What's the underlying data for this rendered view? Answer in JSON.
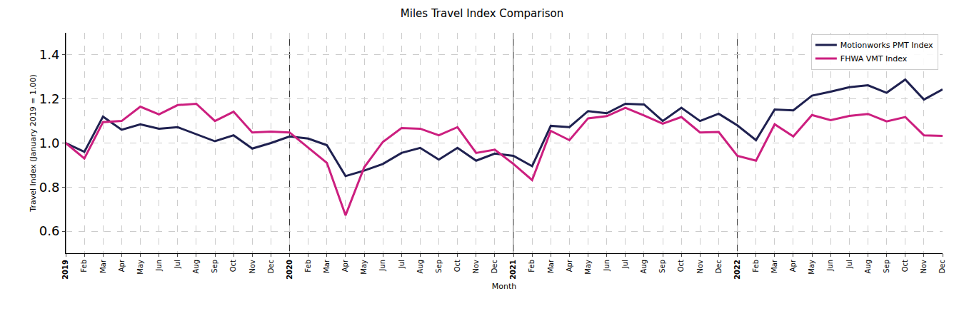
{
  "chart_data": {
    "type": "line",
    "title": "Miles Travel Index Comparison",
    "x_label": "Month",
    "y_label": "Travel Index (January 2019 = 1.00)",
    "categories": [
      "2019",
      "Feb",
      "Mar",
      "Apr",
      "May",
      "Jun",
      "Jul",
      "Aug",
      "Sep",
      "Oct",
      "Nov",
      "Dec",
      "2020",
      "Feb",
      "Mar",
      "Apr",
      "May",
      "Jun",
      "Jul",
      "Aug",
      "Sep",
      "Oct",
      "Nov",
      "Dec",
      "2021",
      "Feb",
      "Mar",
      "Apr",
      "May",
      "Jun",
      "Jul",
      "Aug",
      "Sep",
      "Oct",
      "Nov",
      "Dec",
      "2022",
      "Feb",
      "Mar",
      "Apr",
      "May",
      "Jun",
      "Jul",
      "Aug",
      "Sep",
      "Oct",
      "Nov",
      "Dec"
    ],
    "series": [
      {
        "name": "Motionworks PMT Index",
        "color": "#1f2150",
        "values": [
          1.0,
          0.96,
          1.12,
          1.06,
          1.085,
          1.065,
          1.072,
          1.04,
          1.008,
          1.035,
          0.975,
          1.0,
          1.03,
          1.02,
          0.99,
          0.85,
          0.875,
          0.905,
          0.955,
          0.978,
          0.925,
          0.978,
          0.92,
          0.952,
          0.942,
          0.895,
          1.078,
          1.072,
          1.145,
          1.135,
          1.178,
          1.175,
          1.1,
          1.16,
          1.1,
          1.133,
          1.08,
          1.013,
          1.152,
          1.148,
          1.215,
          1.233,
          1.253,
          1.262,
          1.228,
          1.288,
          1.197,
          1.243
        ]
      },
      {
        "name": "FHWA VMT Index",
        "color": "#cc1f7f",
        "values": [
          1.0,
          0.93,
          1.095,
          1.1,
          1.165,
          1.13,
          1.172,
          1.178,
          1.1,
          1.142,
          1.048,
          1.052,
          1.048,
          0.978,
          0.91,
          0.672,
          0.89,
          1.005,
          1.068,
          1.065,
          1.035,
          1.072,
          0.955,
          0.97,
          0.905,
          0.832,
          1.055,
          1.013,
          1.112,
          1.122,
          1.16,
          1.125,
          1.088,
          1.118,
          1.048,
          1.05,
          0.942,
          0.92,
          1.085,
          1.03,
          1.127,
          1.104,
          1.123,
          1.132,
          1.098,
          1.118,
          1.035,
          1.032
        ]
      }
    ],
    "ylim": [
      0.5,
      1.5
    ],
    "yticks": [
      0.6,
      0.8,
      {
        "value": 1,
        "label": "1.0"
      },
      1.2,
      1.4
    ],
    "grid": true,
    "legend": "upper right"
  }
}
